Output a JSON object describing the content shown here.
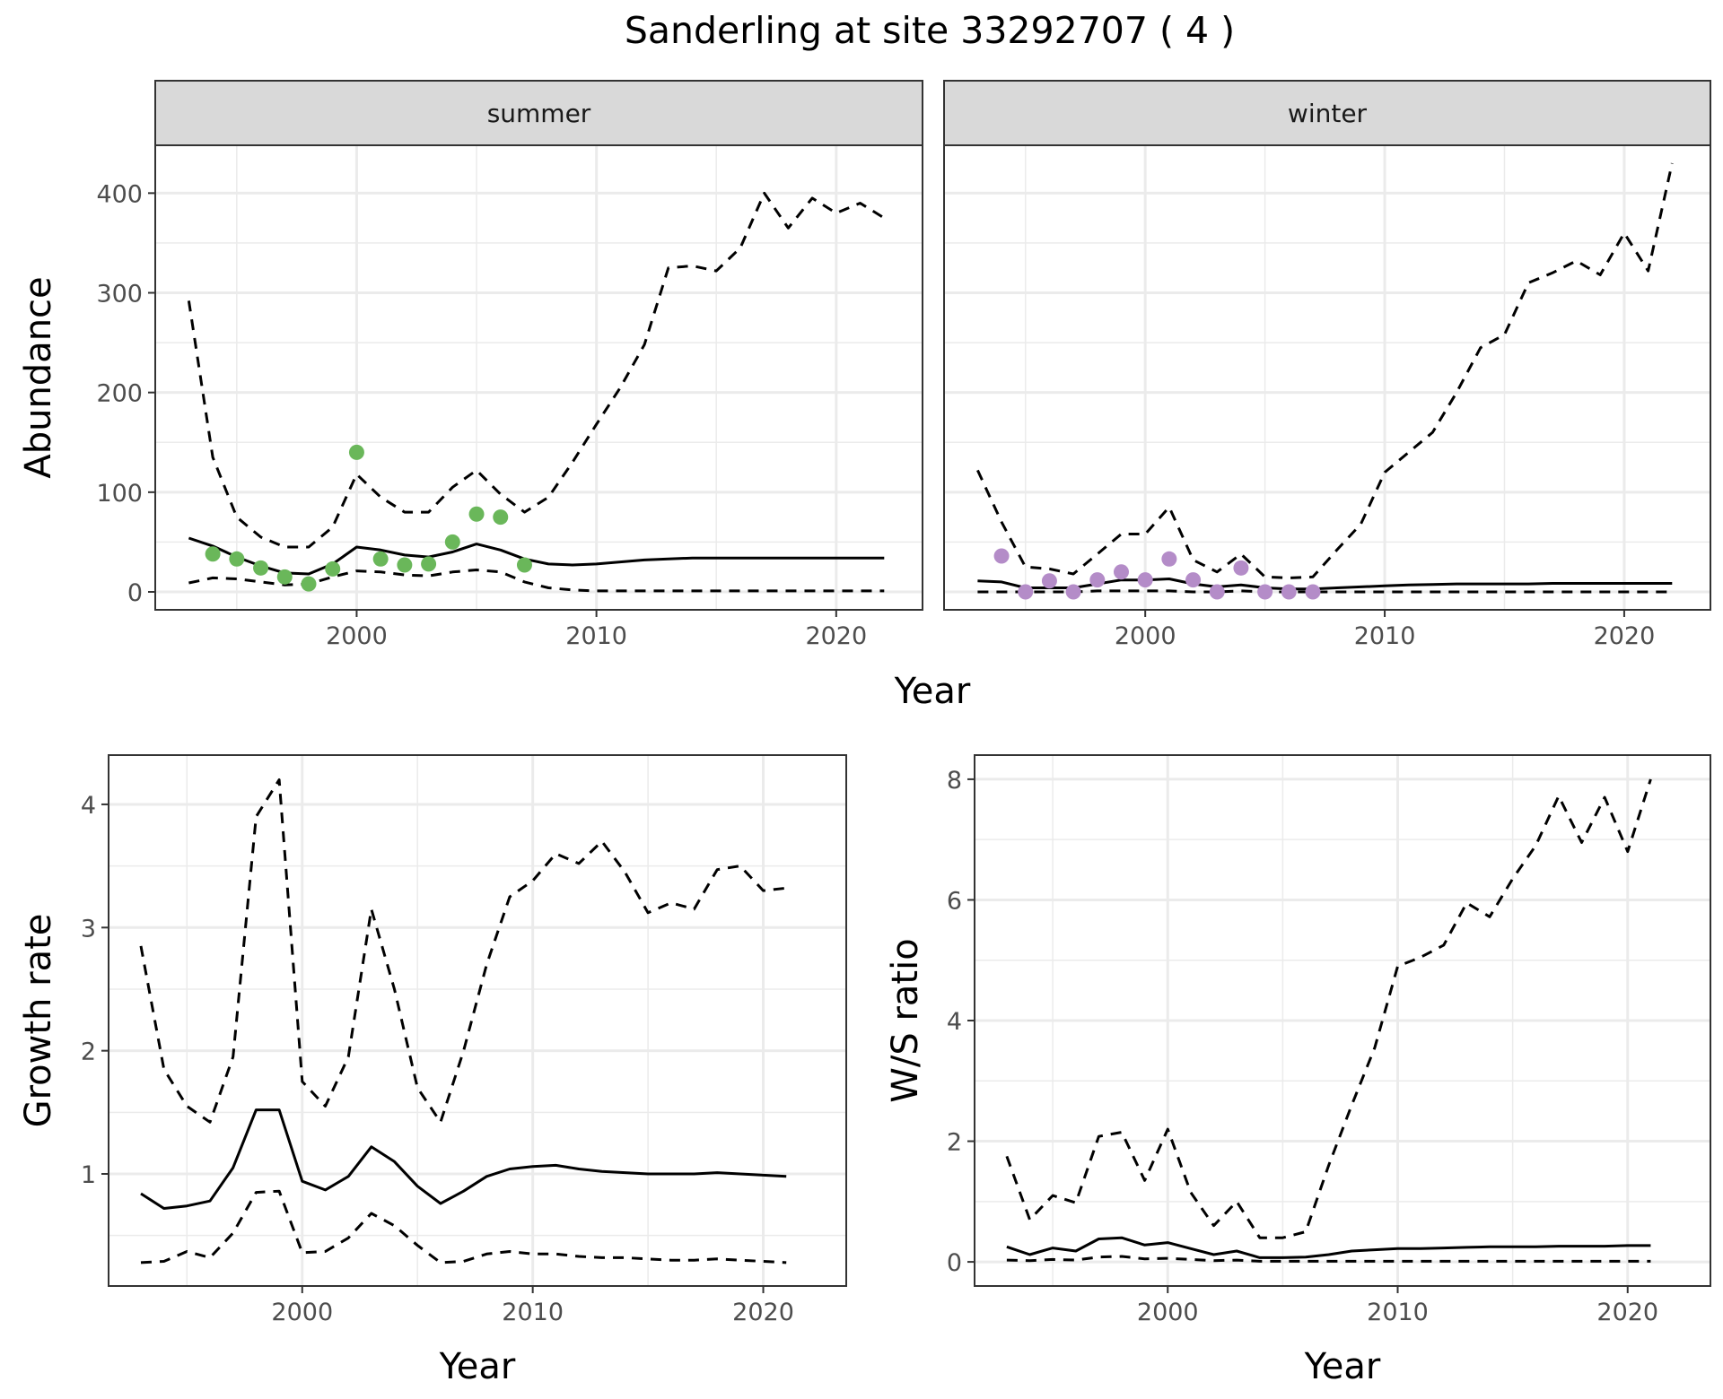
{
  "title": "Sanderling at site 33292707 ( 4 )",
  "colors": {
    "summer_points": "#6ab75a",
    "winter_points": "#b48cc8",
    "lines": "#000000",
    "strip_fill": "#d9d9d9",
    "grid": "#ebebeb"
  },
  "chart_data": [
    {
      "id": "abundance",
      "type": "line",
      "facets": [
        {
          "label": "summer",
          "x": [
            1993,
            1994,
            1995,
            1996,
            1997,
            1998,
            1999,
            2000,
            2001,
            2002,
            2003,
            2004,
            2005,
            2006,
            2007,
            2008,
            2009,
            2010,
            2011,
            2012,
            2013,
            2014,
            2015,
            2016,
            2017,
            2018,
            2019,
            2020,
            2021,
            2022
          ],
          "series": [
            {
              "style": "dashed",
              "values": [
                292,
                135,
                75,
                55,
                45,
                45,
                65,
                118,
                95,
                80,
                80,
                105,
                122,
                98,
                80,
                95,
                130,
                168,
                205,
                248,
                325,
                327,
                322,
                345,
                400,
                365,
                395,
                380,
                390,
                375
              ]
            },
            {
              "style": "solid",
              "values": [
                54,
                46,
                35,
                26,
                19,
                18,
                28,
                45,
                42,
                37,
                35,
                40,
                48,
                42,
                33,
                28,
                27,
                28,
                30,
                32,
                33,
                34,
                34,
                34,
                34,
                34,
                34,
                34,
                34,
                34
              ]
            },
            {
              "style": "dashed",
              "values": [
                9,
                14,
                13,
                10,
                7,
                8,
                15,
                21,
                20,
                17,
                16,
                20,
                22,
                20,
                10,
                4,
                2,
                1,
                1,
                1,
                1,
                1,
                1,
                1,
                1,
                1,
                1,
                1,
                1,
                1
              ]
            }
          ],
          "points": {
            "x": [
              1994,
              1995,
              1996,
              1997,
              1998,
              1999,
              2000,
              2001,
              2002,
              2003,
              2004,
              2005,
              2006,
              2007
            ],
            "y": [
              38,
              33,
              24,
              15,
              8,
              23,
              140,
              33,
              27,
              28,
              50,
              78,
              75,
              27
            ]
          }
        },
        {
          "label": "winter",
          "x": [
            1993,
            1994,
            1995,
            1996,
            1997,
            1998,
            1999,
            2000,
            2001,
            2002,
            2003,
            2004,
            2005,
            2006,
            2007,
            2008,
            2009,
            2010,
            2011,
            2012,
            2013,
            2014,
            2015,
            2016,
            2017,
            2018,
            2019,
            2020,
            2021,
            2022
          ],
          "series": [
            {
              "style": "dashed",
              "values": [
                122,
                70,
                25,
                23,
                18,
                38,
                58,
                58,
                85,
                32,
                20,
                38,
                15,
                14,
                15,
                42,
                68,
                120,
                140,
                160,
                200,
                245,
                258,
                310,
                320,
                332,
                318,
                360,
                322,
                430
              ]
            },
            {
              "style": "solid",
              "values": [
                11,
                10,
                4,
                4,
                4,
                8,
                12,
                12,
                13,
                8,
                5,
                7,
                4,
                3,
                3,
                4,
                5,
                6,
                7,
                7.5,
                8,
                8,
                8,
                8,
                8.5,
                8.5,
                8.5,
                8.5,
                8.5,
                8.5
              ]
            },
            {
              "style": "dashed",
              "values": [
                0,
                0,
                0,
                0,
                0,
                1,
                1,
                1,
                1,
                0,
                0,
                1,
                0,
                0,
                0,
                0,
                0,
                0,
                0,
                0,
                0,
                0,
                0,
                0,
                0,
                0,
                0,
                0,
                0,
                0
              ]
            }
          ],
          "points": {
            "x": [
              1994,
              1995,
              1996,
              1997,
              1998,
              1999,
              2000,
              2001,
              2002,
              2003,
              2004,
              2005,
              2006,
              2007
            ],
            "y": [
              36,
              0,
              11,
              0,
              12,
              20,
              12,
              33,
              12,
              0,
              24,
              0,
              0,
              0
            ]
          }
        }
      ],
      "xlabel": "Year",
      "ylabel": "Abundance",
      "xlim": [
        1991.6,
        2023.6
      ],
      "ylim": [
        -18,
        448
      ],
      "x_ticks": [
        2000,
        2010,
        2020
      ],
      "y_ticks": [
        0,
        100,
        200,
        300,
        400
      ],
      "grid": true
    },
    {
      "id": "growth",
      "type": "line",
      "x": [
        1993,
        1994,
        1995,
        1996,
        1997,
        1998,
        1999,
        2000,
        2001,
        2002,
        2003,
        2004,
        2005,
        2006,
        2007,
        2008,
        2009,
        2010,
        2011,
        2012,
        2013,
        2014,
        2015,
        2016,
        2017,
        2018,
        2019,
        2020,
        2021
      ],
      "series": [
        {
          "style": "dashed",
          "values": [
            2.85,
            1.85,
            1.55,
            1.42,
            1.95,
            3.9,
            4.2,
            1.75,
            1.55,
            1.95,
            3.15,
            2.5,
            1.7,
            1.42,
            2.0,
            2.7,
            3.25,
            3.38,
            3.6,
            3.52,
            3.7,
            3.45,
            3.12,
            3.2,
            3.15,
            3.47,
            3.5,
            3.3,
            3.32
          ]
        },
        {
          "style": "solid",
          "values": [
            0.84,
            0.72,
            0.74,
            0.78,
            1.05,
            1.52,
            1.52,
            0.94,
            0.87,
            0.98,
            1.22,
            1.1,
            0.9,
            0.76,
            0.86,
            0.98,
            1.04,
            1.06,
            1.07,
            1.04,
            1.02,
            1.01,
            1.0,
            1.0,
            1.0,
            1.01,
            1.0,
            0.99,
            0.98
          ]
        },
        {
          "style": "dashed",
          "values": [
            0.28,
            0.29,
            0.37,
            0.32,
            0.52,
            0.85,
            0.86,
            0.36,
            0.37,
            0.48,
            0.68,
            0.58,
            0.42,
            0.28,
            0.29,
            0.35,
            0.37,
            0.35,
            0.35,
            0.33,
            0.32,
            0.32,
            0.31,
            0.3,
            0.3,
            0.31,
            0.3,
            0.29,
            0.28
          ]
        }
      ],
      "xlabel": "Year",
      "ylabel": "Growth rate",
      "xlim": [
        1991.6,
        2023.6
      ],
      "ylim": [
        0.09,
        4.4
      ],
      "x_ticks": [
        2000,
        2010,
        2020
      ],
      "y_ticks": [
        1,
        2,
        3,
        4
      ],
      "grid": true
    },
    {
      "id": "ratio",
      "type": "line",
      "x": [
        1993,
        1994,
        1995,
        1996,
        1997,
        1998,
        1999,
        2000,
        2001,
        2002,
        2003,
        2004,
        2005,
        2006,
        2007,
        2008,
        2009,
        2010,
        2011,
        2012,
        2013,
        2014,
        2015,
        2016,
        2017,
        2018,
        2019,
        2020,
        2021
      ],
      "series": [
        {
          "style": "dashed",
          "values": [
            1.75,
            0.7,
            1.1,
            0.98,
            2.08,
            2.15,
            1.35,
            2.2,
            1.15,
            0.6,
            1.0,
            0.4,
            0.4,
            0.5,
            1.6,
            2.6,
            3.55,
            4.9,
            5.05,
            5.25,
            5.95,
            5.72,
            6.35,
            6.9,
            7.72,
            6.95,
            7.7,
            6.8,
            8.0
          ]
        },
        {
          "style": "solid",
          "values": [
            0.25,
            0.12,
            0.23,
            0.18,
            0.38,
            0.4,
            0.28,
            0.32,
            0.22,
            0.12,
            0.18,
            0.07,
            0.07,
            0.08,
            0.12,
            0.18,
            0.2,
            0.22,
            0.22,
            0.23,
            0.24,
            0.25,
            0.25,
            0.25,
            0.26,
            0.26,
            0.26,
            0.27,
            0.27
          ]
        },
        {
          "style": "dashed",
          "values": [
            0.03,
            0.02,
            0.04,
            0.03,
            0.08,
            0.09,
            0.05,
            0.06,
            0.04,
            0.02,
            0.03,
            0.01,
            0.01,
            0.01,
            0.01,
            0.01,
            0.01,
            0.01,
            0.01,
            0.01,
            0.01,
            0.01,
            0.01,
            0.01,
            0.01,
            0.01,
            0.01,
            0.01,
            0.01
          ]
        }
      ],
      "xlabel": "Year",
      "ylabel": "W/S ratio",
      "xlim": [
        1991.6,
        2023.6
      ],
      "ylim": [
        -0.4,
        8.4
      ],
      "x_ticks": [
        2000,
        2010,
        2020
      ],
      "y_ticks": [
        0,
        2,
        4,
        6,
        8
      ],
      "grid": true
    }
  ]
}
